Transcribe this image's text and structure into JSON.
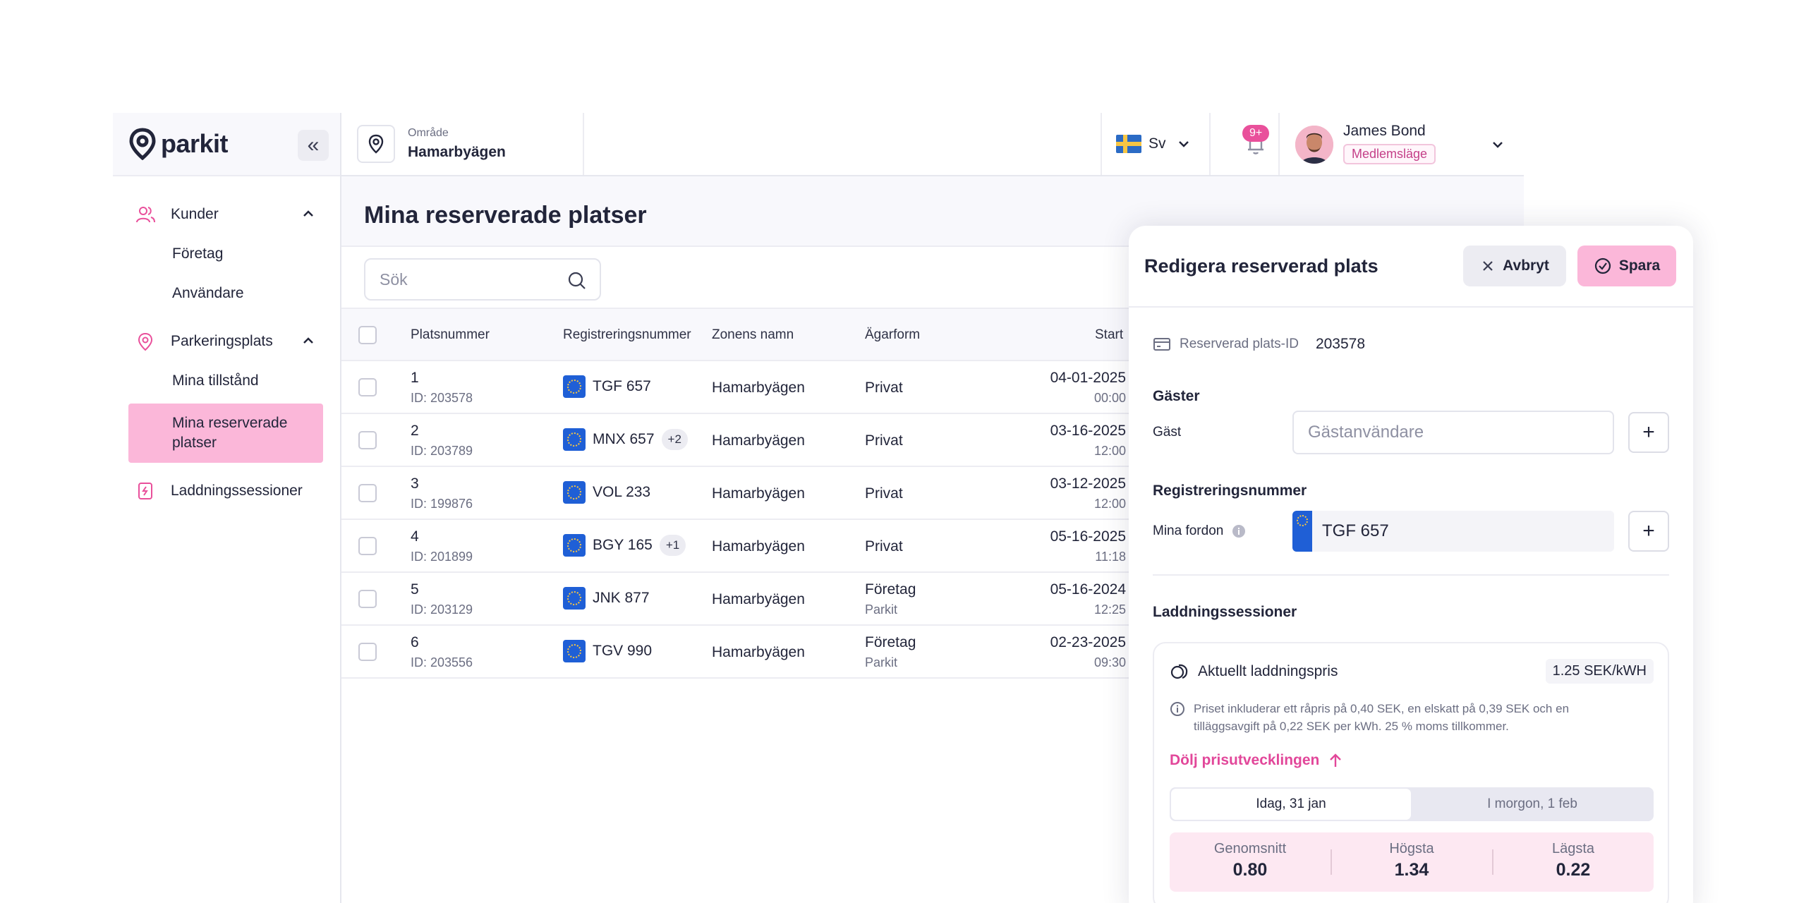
{
  "brand": {
    "name": "parkit"
  },
  "sidebar": {
    "groups": [
      {
        "label": "Kunder",
        "items": [
          "Företag",
          "Användare"
        ]
      },
      {
        "label": "Parkeringsplats",
        "items": [
          "Mina tillstånd",
          "Mina reserverade platser"
        ]
      },
      {
        "label": "Laddningssessioner",
        "items": []
      }
    ],
    "active_item": "Mina reserverade platser"
  },
  "topbar": {
    "area_label": "Område",
    "area_value": "Hamarbyägen",
    "language": "Sv",
    "notifications_badge": "9+",
    "user_name": "James Bond",
    "user_role": "Medlemsläge"
  },
  "main": {
    "title": "Mina reserverade platser",
    "search_placeholder": "Sök",
    "columns": [
      "Platsnummer",
      "Registreringsnummer",
      "Zonens namn",
      "Ägarform",
      "Start"
    ],
    "rows": [
      {
        "num": "1",
        "id": "ID: 203578",
        "plate": "TGF 657",
        "more": "",
        "zone": "Hamarbyägen",
        "owner": "Privat",
        "owner_sub": "",
        "date": "04-01-2025",
        "time": "00:00"
      },
      {
        "num": "2",
        "id": "ID: 203789",
        "plate": "MNX 657",
        "more": "+2",
        "zone": "Hamarbyägen",
        "owner": "Privat",
        "owner_sub": "",
        "date": "03-16-2025",
        "time": "12:00"
      },
      {
        "num": "3",
        "id": "ID: 199876",
        "plate": "VOL 233",
        "more": "",
        "zone": "Hamarbyägen",
        "owner": "Privat",
        "owner_sub": "",
        "date": "03-12-2025",
        "time": "12:00"
      },
      {
        "num": "4",
        "id": "ID: 201899",
        "plate": "BGY 165",
        "more": "+1",
        "zone": "Hamarbyägen",
        "owner": "Privat",
        "owner_sub": "",
        "date": "05-16-2025",
        "time": "11:18"
      },
      {
        "num": "5",
        "id": "ID: 203129",
        "plate": "JNK 877",
        "more": "",
        "zone": "Hamarbyägen",
        "owner": "Företag",
        "owner_sub": "Parkit",
        "date": "05-16-2024",
        "time": "12:25"
      },
      {
        "num": "6",
        "id": "ID: 203556",
        "plate": "TGV 990",
        "more": "",
        "zone": "Hamarbyägen",
        "owner": "Företag",
        "owner_sub": "Parkit",
        "date": "02-23-2025",
        "time": "09:30"
      }
    ]
  },
  "panel": {
    "title": "Redigera reserverad plats",
    "cancel_label": "Avbryt",
    "save_label": "Spara",
    "id_label": "Reserverad plats-ID",
    "id_value": "203578",
    "guests_heading": "Gäster",
    "guest_label": "Gäst",
    "guest_placeholder": "Gästanvändare",
    "reg_heading": "Registreringsnummer",
    "vehicles_label": "Mina fordon",
    "vehicle_value": "TGF 657",
    "charging_heading": "Laddningssessioner",
    "price_title": "Aktuellt laddningspris",
    "price_value": "1.25 SEK/kWH",
    "price_note": "Priset inkluderar ett råpris på 0,40 SEK, en elskatt på 0,39 SEK och en tilläggsavgift på 0,22 SEK per kWh. 25 % moms tillkommer.",
    "toggle_link": "Dölj prisutvecklingen",
    "tab_today": "Idag, 31 jan",
    "tab_tomorrow": "I morgon, 1 feb",
    "stats": [
      {
        "label": "Genomsnitt",
        "value": "0.80"
      },
      {
        "label": "Högsta",
        "value": "1.34"
      },
      {
        "label": "Lägsta",
        "value": "0.22"
      }
    ]
  },
  "colors": {
    "accent_pink": "#e9509b",
    "active_bg": "#fbb7d9",
    "eu_blue": "#1f5fd6"
  }
}
